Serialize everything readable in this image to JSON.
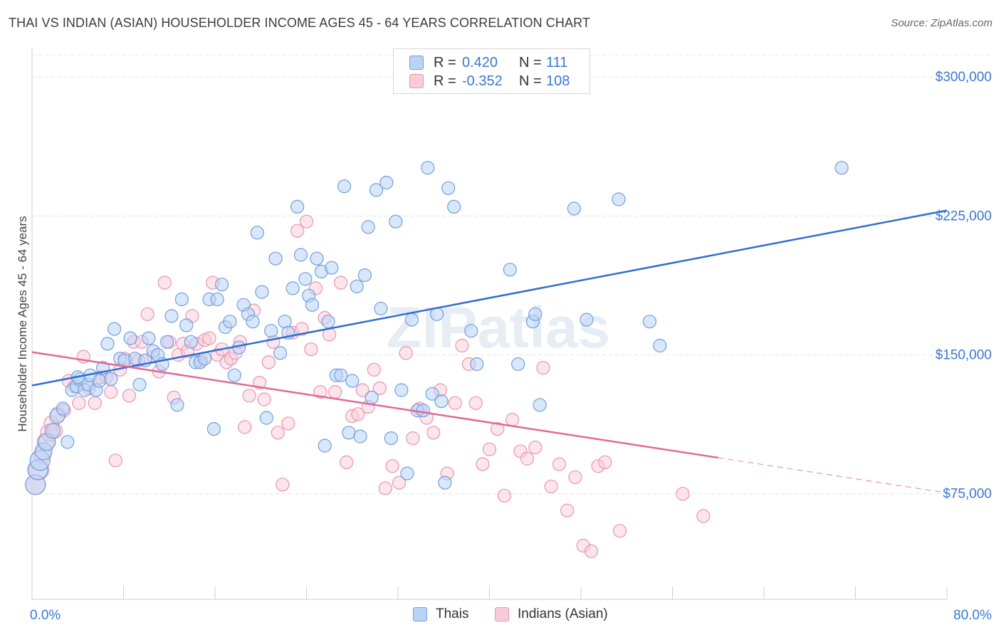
{
  "title": "THAI VS INDIAN (ASIAN) HOUSEHOLDER INCOME AGES 45 - 64 YEARS CORRELATION CHART",
  "source": "Source: ZipAtlas.com",
  "watermark": "ZIPatlas",
  "legend_top": [
    {
      "r_label": "R =",
      "r_value": "0.420",
      "n_label": "N =",
      "n_value": "111",
      "color": "#6f9fde"
    },
    {
      "r_label": "R =",
      "r_value": "-0.352",
      "n_label": "N =",
      "n_value": "108",
      "color": "#eb93b0"
    }
  ],
  "legend_bottom": [
    {
      "label": "Thais",
      "color": "#6f9fde"
    },
    {
      "label": "Indians (Asian)",
      "color": "#eb93b0"
    }
  ],
  "chart_data": {
    "type": "scatter",
    "title": "THAI VS INDIAN (ASIAN) HOUSEHOLDER INCOME AGES 45 - 64 YEARS CORRELATION CHART",
    "xlabel": "",
    "ylabel": "Householder Income Ages 45 - 64 years",
    "xlim": [
      0,
      80
    ],
    "ylim": [
      18000,
      312000
    ],
    "x_tick_labels": [
      "0.0%",
      "80.0%"
    ],
    "y_ticks": [
      75000,
      150000,
      225000,
      300000
    ],
    "y_tick_labels": [
      "$75,000",
      "$150,000",
      "$225,000",
      "$300,000"
    ],
    "grid": true,
    "legend_position": "top-center",
    "series": [
      {
        "name": "Thais",
        "color": "#6f9fde",
        "trend": {
          "x": [
            0,
            80
          ],
          "y": [
            133500,
            228000
          ]
        },
        "points": [
          [
            0.3,
            80000
          ],
          [
            0.5,
            88000
          ],
          [
            0.7,
            93000
          ],
          [
            1.0,
            98000
          ],
          [
            1.3,
            103000
          ],
          [
            1.8,
            109000
          ],
          [
            2.2,
            117000
          ],
          [
            2.7,
            121000
          ],
          [
            3.1,
            103000
          ],
          [
            3.5,
            131000
          ],
          [
            3.9,
            133000
          ],
          [
            4.2,
            137000
          ],
          [
            4.6,
            131000
          ],
          [
            4.9,
            134000
          ],
          [
            5.1,
            139000
          ],
          [
            5.6,
            131000
          ],
          [
            5.9,
            136000
          ],
          [
            6.2,
            143000
          ],
          [
            6.6,
            156000
          ],
          [
            6.9,
            137000
          ],
          [
            7.2,
            164000
          ],
          [
            7.7,
            148000
          ],
          [
            8.1,
            147000
          ],
          [
            8.6,
            159000
          ],
          [
            9.0,
            148000
          ],
          [
            9.4,
            134000
          ],
          [
            9.9,
            147000
          ],
          [
            10.2,
            159000
          ],
          [
            10.6,
            152000
          ],
          [
            11.0,
            150000
          ],
          [
            11.4,
            145000
          ],
          [
            11.8,
            157000
          ],
          [
            12.2,
            171000
          ],
          [
            12.7,
            123000
          ],
          [
            13.1,
            180000
          ],
          [
            13.5,
            166000
          ],
          [
            13.9,
            157000
          ],
          [
            14.3,
            146000
          ],
          [
            14.7,
            146000
          ],
          [
            15.1,
            148000
          ],
          [
            15.5,
            180000
          ],
          [
            15.9,
            110000
          ],
          [
            16.2,
            180000
          ],
          [
            16.6,
            188000
          ],
          [
            16.9,
            165000
          ],
          [
            17.3,
            168000
          ],
          [
            17.7,
            139000
          ],
          [
            18.1,
            154000
          ],
          [
            18.5,
            177000
          ],
          [
            18.9,
            172000
          ],
          [
            19.3,
            168000
          ],
          [
            19.7,
            216000
          ],
          [
            20.1,
            184000
          ],
          [
            20.5,
            116000
          ],
          [
            20.9,
            163000
          ],
          [
            21.3,
            202000
          ],
          [
            21.7,
            151000
          ],
          [
            22.1,
            168000
          ],
          [
            22.4,
            162000
          ],
          [
            22.8,
            186000
          ],
          [
            23.2,
            230000
          ],
          [
            23.5,
            204000
          ],
          [
            23.9,
            191000
          ],
          [
            24.2,
            182000
          ],
          [
            24.5,
            177000
          ],
          [
            24.9,
            202000
          ],
          [
            25.3,
            195000
          ],
          [
            25.6,
            101000
          ],
          [
            25.9,
            168000
          ],
          [
            26.2,
            197000
          ],
          [
            26.6,
            139000
          ],
          [
            27.0,
            139000
          ],
          [
            27.3,
            241000
          ],
          [
            27.7,
            108000
          ],
          [
            28.0,
            136000
          ],
          [
            28.4,
            187000
          ],
          [
            28.7,
            106000
          ],
          [
            29.1,
            193000
          ],
          [
            29.4,
            219000
          ],
          [
            29.7,
            127000
          ],
          [
            30.1,
            239000
          ],
          [
            30.5,
            175000
          ],
          [
            31.0,
            243000
          ],
          [
            31.4,
            105000
          ],
          [
            31.8,
            222000
          ],
          [
            32.3,
            131000
          ],
          [
            32.8,
            86000
          ],
          [
            33.2,
            169000
          ],
          [
            33.7,
            120000
          ],
          [
            34.2,
            120000
          ],
          [
            34.6,
            251000
          ],
          [
            35.0,
            129000
          ],
          [
            35.4,
            172000
          ],
          [
            35.8,
            125000
          ],
          [
            36.1,
            81000
          ],
          [
            36.4,
            240000
          ],
          [
            36.9,
            230000
          ],
          [
            38.4,
            163000
          ],
          [
            38.9,
            145000
          ],
          [
            41.8,
            196000
          ],
          [
            42.5,
            145000
          ],
          [
            43.8,
            168000
          ],
          [
            44.0,
            172000
          ],
          [
            44.4,
            123000
          ],
          [
            47.4,
            229000
          ],
          [
            48.5,
            169000
          ],
          [
            51.3,
            234000
          ],
          [
            54.0,
            168000
          ],
          [
            54.9,
            155000
          ],
          [
            70.8,
            251000
          ],
          [
            4.0,
            138000
          ]
        ]
      },
      {
        "name": "Indians (Asian)",
        "color": "#eb93b0",
        "trend": {
          "x": [
            0,
            60
          ],
          "y": [
            151500,
            94500
          ]
        },
        "trend_dashed": {
          "x": [
            60,
            80
          ],
          "y": [
            94500,
            75500
          ]
        },
        "points": [
          [
            0.3,
            80000
          ],
          [
            0.6,
            88000
          ],
          [
            0.9,
            96000
          ],
          [
            1.2,
            103000
          ],
          [
            1.5,
            108000
          ],
          [
            1.7,
            113000
          ],
          [
            2.0,
            109000
          ],
          [
            2.3,
            118000
          ],
          [
            2.8,
            120000
          ],
          [
            3.2,
            136000
          ],
          [
            3.7,
            133000
          ],
          [
            4.1,
            124000
          ],
          [
            4.5,
            149000
          ],
          [
            5.0,
            132000
          ],
          [
            5.5,
            124000
          ],
          [
            6.0,
            138000
          ],
          [
            6.5,
            138000
          ],
          [
            6.9,
            130000
          ],
          [
            7.3,
            93000
          ],
          [
            7.7,
            142000
          ],
          [
            8.1,
            148000
          ],
          [
            8.5,
            128000
          ],
          [
            8.9,
            157000
          ],
          [
            9.3,
            147000
          ],
          [
            9.6,
            157000
          ],
          [
            10.1,
            172000
          ],
          [
            10.6,
            149000
          ],
          [
            11.1,
            141000
          ],
          [
            11.6,
            189000
          ],
          [
            12.0,
            157000
          ],
          [
            12.4,
            127000
          ],
          [
            12.8,
            150000
          ],
          [
            13.2,
            156000
          ],
          [
            13.6,
            152000
          ],
          [
            14.0,
            171000
          ],
          [
            14.4,
            156000
          ],
          [
            14.8,
            147000
          ],
          [
            15.1,
            158000
          ],
          [
            15.5,
            159000
          ],
          [
            15.8,
            189000
          ],
          [
            16.2,
            150000
          ],
          [
            16.6,
            153000
          ],
          [
            17.0,
            146000
          ],
          [
            17.4,
            148000
          ],
          [
            17.8,
            151000
          ],
          [
            18.2,
            157000
          ],
          [
            18.6,
            111000
          ],
          [
            19.0,
            128000
          ],
          [
            19.4,
            174000
          ],
          [
            19.9,
            135000
          ],
          [
            20.3,
            126000
          ],
          [
            20.7,
            146000
          ],
          [
            21.1,
            157000
          ],
          [
            21.5,
            108000
          ],
          [
            21.9,
            80000
          ],
          [
            22.4,
            113000
          ],
          [
            22.8,
            162000
          ],
          [
            23.2,
            217000
          ],
          [
            23.6,
            164000
          ],
          [
            24.0,
            222000
          ],
          [
            24.4,
            153000
          ],
          [
            24.8,
            186000
          ],
          [
            25.2,
            130000
          ],
          [
            25.6,
            170000
          ],
          [
            26.0,
            161000
          ],
          [
            26.5,
            130000
          ],
          [
            27.0,
            189000
          ],
          [
            27.5,
            92000
          ],
          [
            28.0,
            117000
          ],
          [
            28.5,
            118000
          ],
          [
            28.9,
            131000
          ],
          [
            29.4,
            122000
          ],
          [
            29.9,
            142000
          ],
          [
            30.4,
            132000
          ],
          [
            30.9,
            78000
          ],
          [
            31.5,
            90000
          ],
          [
            32.1,
            81000
          ],
          [
            32.7,
            151000
          ],
          [
            33.3,
            105000
          ],
          [
            33.9,
            121000
          ],
          [
            34.5,
            116000
          ],
          [
            35.1,
            108000
          ],
          [
            35.7,
            131000
          ],
          [
            36.3,
            86000
          ],
          [
            37.0,
            124000
          ],
          [
            37.6,
            155000
          ],
          [
            38.2,
            145000
          ],
          [
            38.8,
            124000
          ],
          [
            39.4,
            91000
          ],
          [
            40.0,
            99000
          ],
          [
            40.7,
            110000
          ],
          [
            41.3,
            74000
          ],
          [
            42.0,
            115000
          ],
          [
            42.7,
            98000
          ],
          [
            43.3,
            94000
          ],
          [
            44.0,
            100000
          ],
          [
            44.7,
            143000
          ],
          [
            45.4,
            79000
          ],
          [
            46.1,
            91000
          ],
          [
            46.8,
            66000
          ],
          [
            47.5,
            84000
          ],
          [
            48.2,
            47000
          ],
          [
            48.9,
            44000
          ],
          [
            49.5,
            90000
          ],
          [
            50.1,
            92000
          ],
          [
            51.4,
            55000
          ],
          [
            56.9,
            75000
          ],
          [
            58.7,
            63000
          ]
        ]
      }
    ]
  }
}
